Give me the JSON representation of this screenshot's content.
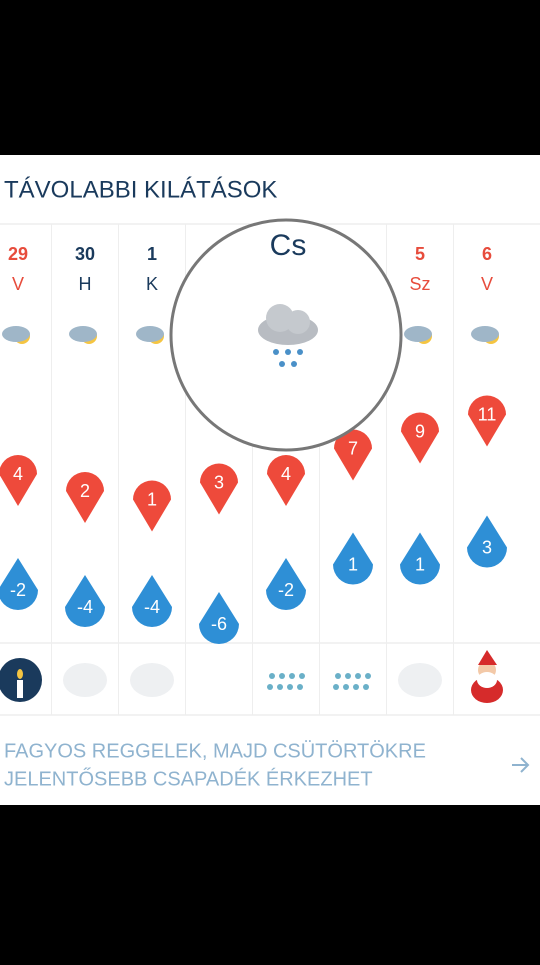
{
  "header": {
    "title": "TÁVOLABBI KILÁTÁSOK"
  },
  "magnifier": {
    "label": "Cs"
  },
  "days": [
    {
      "date": "29",
      "day": "V",
      "color": "#e74c3c"
    },
    {
      "date": "30",
      "day": "H",
      "color": "#1a3a5c"
    },
    {
      "date": "1",
      "day": "K",
      "color": "#1a3a5c"
    },
    null,
    null,
    null,
    {
      "date": "5",
      "day": "Sz",
      "color": "#e74c3c"
    },
    {
      "date": "6",
      "day": "V",
      "color": "#e74c3c"
    }
  ],
  "max_temps": [
    4,
    2,
    1,
    3,
    4,
    7,
    9,
    11
  ],
  "min_temps": [
    -2,
    -4,
    -4,
    -6,
    -2,
    1,
    1,
    3
  ],
  "footer": {
    "text_lines": [
      "FAGYOS REGGELEK, MAJD CSÜTÖRTÖKRE",
      "JELENTŐSEBB CSAPADÉK ÉRKEZHET"
    ]
  }
}
